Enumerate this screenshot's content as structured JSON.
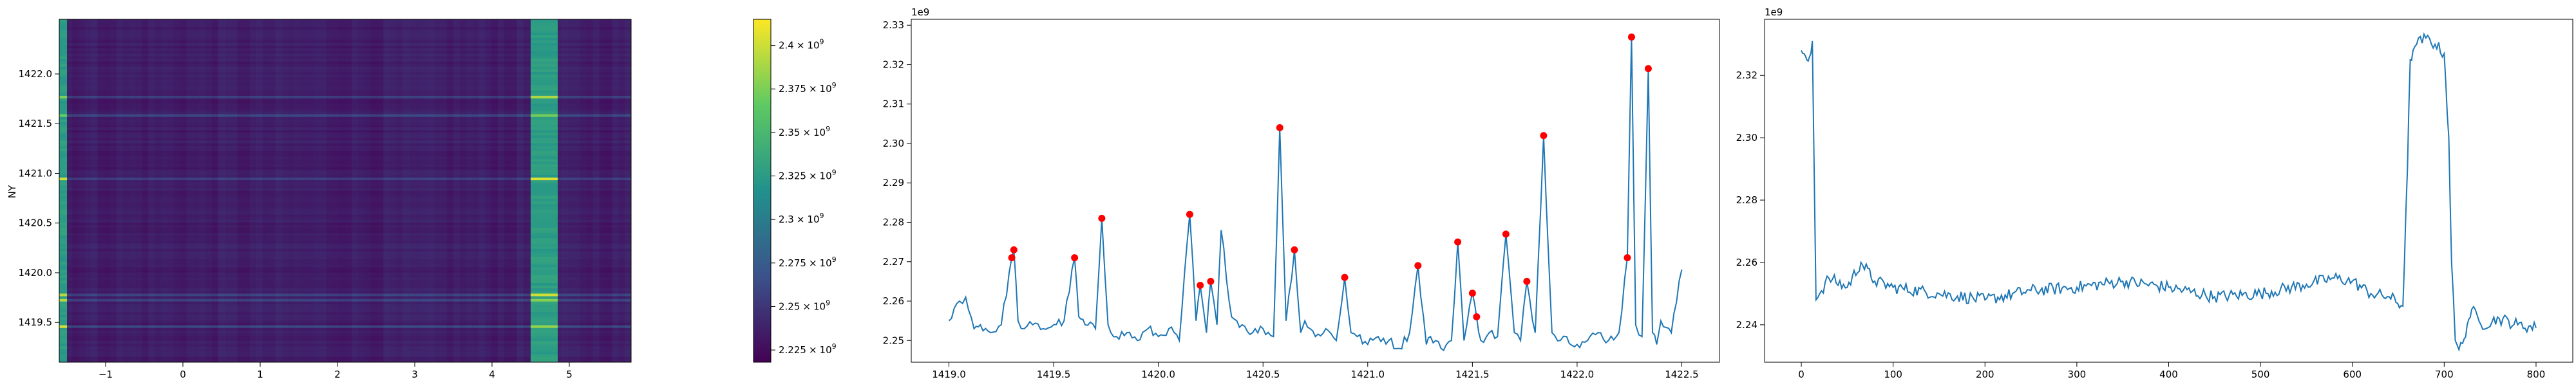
{
  "chart_data": [
    {
      "type": "heatmap",
      "ylabel": "NY",
      "xlabel": "",
      "title": "",
      "xlim": [
        -1.6,
        5.8
      ],
      "ylim": [
        1419.1,
        1422.55
      ],
      "xticks": [
        -1,
        0,
        1,
        2,
        3,
        4,
        5
      ],
      "xtick_labels": [
        "−1",
        "0",
        "1",
        "2",
        "3",
        "4",
        "5"
      ],
      "yticks": [
        1419.5,
        1420.0,
        1420.5,
        1421.0,
        1421.5,
        1422.0
      ],
      "ytick_labels": [
        "1419.5",
        "1420.0",
        "1420.5",
        "1421.0",
        "1421.5",
        "1422.0"
      ],
      "bright_bands_x": [
        [
          -1.6,
          -1.5
        ],
        [
          4.5,
          4.85
        ]
      ],
      "colorbar": {
        "colormap": "viridis",
        "range": [
          2218000000.0,
          2415000000.0
        ],
        "ticks": [
          2225000000.0,
          2250000000.0,
          2275000000.0,
          2300000000.0,
          2325000000.0,
          2350000000.0,
          2375000000.0,
          2400000000.0
        ],
        "tick_labels": [
          [
            "2.225",
            "×",
            "10",
            "9"
          ],
          [
            "2.25",
            "×",
            "10",
            "9"
          ],
          [
            "2.275",
            "×",
            "10",
            "9"
          ],
          [
            "2.3",
            "×",
            "10",
            "9"
          ],
          [
            "2.325",
            "×",
            "10",
            "9"
          ],
          [
            "2.35",
            "×",
            "10",
            "9"
          ],
          [
            "2.375",
            "×",
            "10",
            "9"
          ],
          [
            "2.4",
            "×",
            "10",
            "9"
          ]
        ]
      },
      "colors": [
        "#440154",
        "#3b528b",
        "#21918c",
        "#5ec962",
        "#fde725"
      ]
    },
    {
      "type": "line",
      "title": "",
      "xlabel": "",
      "ylabel": "",
      "offset_text": "1e9",
      "xlim": [
        1418.82,
        1422.68
      ],
      "ylim": [
        2.2445,
        2.3315
      ],
      "xticks": [
        1419.0,
        1419.5,
        1420.0,
        1420.5,
        1421.0,
        1421.5,
        1422.0,
        1422.5
      ],
      "xtick_labels": [
        "1419.0",
        "1419.5",
        "1420.0",
        "1420.5",
        "1421.0",
        "1421.5",
        "1422.0",
        "1422.5"
      ],
      "yticks": [
        2.25,
        2.26,
        2.27,
        2.28,
        2.29,
        2.3,
        2.31,
        2.32,
        2.33
      ],
      "ytick_labels": [
        "2.25",
        "2.26",
        "2.27",
        "2.28",
        "2.29",
        "2.30",
        "2.31",
        "2.32",
        "2.33"
      ],
      "line_color": "#1f77b4",
      "peak_color": "#ff0000",
      "series_anchors_x": [
        1419.0,
        1419.05,
        1419.08,
        1419.12,
        1419.15,
        1419.2,
        1419.25,
        1419.3,
        1419.31,
        1419.33,
        1419.36,
        1419.4,
        1419.45,
        1419.5,
        1419.55,
        1419.6,
        1419.62,
        1419.65,
        1419.7,
        1419.73,
        1419.76,
        1419.8,
        1419.85,
        1419.9,
        1419.95,
        1420.0,
        1420.05,
        1420.1,
        1420.15,
        1420.18,
        1420.2,
        1420.23,
        1420.25,
        1420.28,
        1420.3,
        1420.35,
        1420.4,
        1420.45,
        1420.5,
        1420.55,
        1420.58,
        1420.61,
        1420.65,
        1420.68,
        1420.7,
        1420.75,
        1420.8,
        1420.85,
        1420.89,
        1420.92,
        1420.95,
        1421.0,
        1421.05,
        1421.1,
        1421.15,
        1421.2,
        1421.24,
        1421.28,
        1421.3,
        1421.35,
        1421.4,
        1421.43,
        1421.46,
        1421.5,
        1421.52,
        1421.54,
        1421.58,
        1421.62,
        1421.66,
        1421.7,
        1421.73,
        1421.76,
        1421.8,
        1421.84,
        1421.88,
        1421.92,
        1421.95,
        1422.0,
        1422.05,
        1422.1,
        1422.15,
        1422.2,
        1422.24,
        1422.26,
        1422.28,
        1422.31,
        1422.34,
        1422.36,
        1422.38,
        1422.4,
        1422.45,
        1422.5
      ],
      "series_anchors_y": [
        2.255,
        2.26,
        2.261,
        2.253,
        2.254,
        2.252,
        2.254,
        2.271,
        2.273,
        2.255,
        2.253,
        2.254,
        2.253,
        2.254,
        2.255,
        2.271,
        2.256,
        2.254,
        2.253,
        2.281,
        2.254,
        2.251,
        2.252,
        2.25,
        2.253,
        2.251,
        2.253,
        2.25,
        2.282,
        2.255,
        2.264,
        2.252,
        2.265,
        2.254,
        2.278,
        2.256,
        2.254,
        2.252,
        2.253,
        2.251,
        2.304,
        2.255,
        2.273,
        2.252,
        2.255,
        2.251,
        2.253,
        2.25,
        2.266,
        2.252,
        2.251,
        2.249,
        2.251,
        2.25,
        2.248,
        2.252,
        2.269,
        2.249,
        2.251,
        2.248,
        2.25,
        2.275,
        2.25,
        2.262,
        2.256,
        2.25,
        2.252,
        2.251,
        2.277,
        2.252,
        2.25,
        2.265,
        2.252,
        2.302,
        2.252,
        2.25,
        2.251,
        2.249,
        2.25,
        2.252,
        2.25,
        2.252,
        2.271,
        2.327,
        2.254,
        2.251,
        2.319,
        2.252,
        2.249,
        2.255,
        2.252,
        2.268
      ],
      "peaks_x": [
        1419.3,
        1419.31,
        1419.6,
        1419.73,
        1420.15,
        1420.2,
        1420.25,
        1420.58,
        1420.65,
        1420.89,
        1421.24,
        1421.43,
        1421.5,
        1421.52,
        1421.66,
        1421.76,
        1421.84,
        1422.24,
        1422.26,
        1422.34
      ],
      "peaks_y": [
        2.271,
        2.273,
        2.271,
        2.281,
        2.282,
        2.264,
        2.265,
        2.304,
        2.273,
        2.266,
        2.269,
        2.275,
        2.262,
        2.256,
        2.277,
        2.265,
        2.302,
        2.271,
        2.327,
        2.319
      ]
    },
    {
      "type": "line",
      "title": "",
      "xlabel": "",
      "ylabel": "",
      "offset_text": "1e9",
      "xlim": [
        -40,
        840
      ],
      "ylim": [
        2.228,
        2.338
      ],
      "xticks": [
        0,
        100,
        200,
        300,
        400,
        500,
        600,
        700,
        800
      ],
      "xtick_labels": [
        "0",
        "100",
        "200",
        "300",
        "400",
        "500",
        "600",
        "700",
        "800"
      ],
      "yticks": [
        2.24,
        2.26,
        2.28,
        2.3,
        2.32
      ],
      "ytick_labels": [
        "2.24",
        "2.26",
        "2.28",
        "2.30",
        "2.32"
      ],
      "line_color": "#1f77b4",
      "series_anchors_x": [
        0,
        3,
        6,
        9,
        12,
        14,
        16,
        20,
        30,
        50,
        65,
        80,
        100,
        150,
        200,
        250,
        300,
        350,
        400,
        450,
        500,
        550,
        580,
        600,
        620,
        640,
        655,
        660,
        663,
        666,
        670,
        680,
        690,
        700,
        705,
        708,
        712,
        716,
        720,
        725,
        730,
        740,
        760,
        780,
        800
      ],
      "series_anchors_y": [
        2.328,
        2.327,
        2.325,
        2.326,
        2.331,
        2.29,
        2.248,
        2.25,
        2.255,
        2.252,
        2.26,
        2.254,
        2.252,
        2.25,
        2.248,
        2.251,
        2.252,
        2.254,
        2.252,
        2.249,
        2.25,
        2.253,
        2.255,
        2.254,
        2.25,
        2.249,
        2.246,
        2.29,
        2.325,
        2.328,
        2.33,
        2.332,
        2.33,
        2.327,
        2.3,
        2.26,
        2.235,
        2.232,
        2.234,
        2.24,
        2.245,
        2.24,
        2.242,
        2.24,
        2.239
      ]
    }
  ]
}
